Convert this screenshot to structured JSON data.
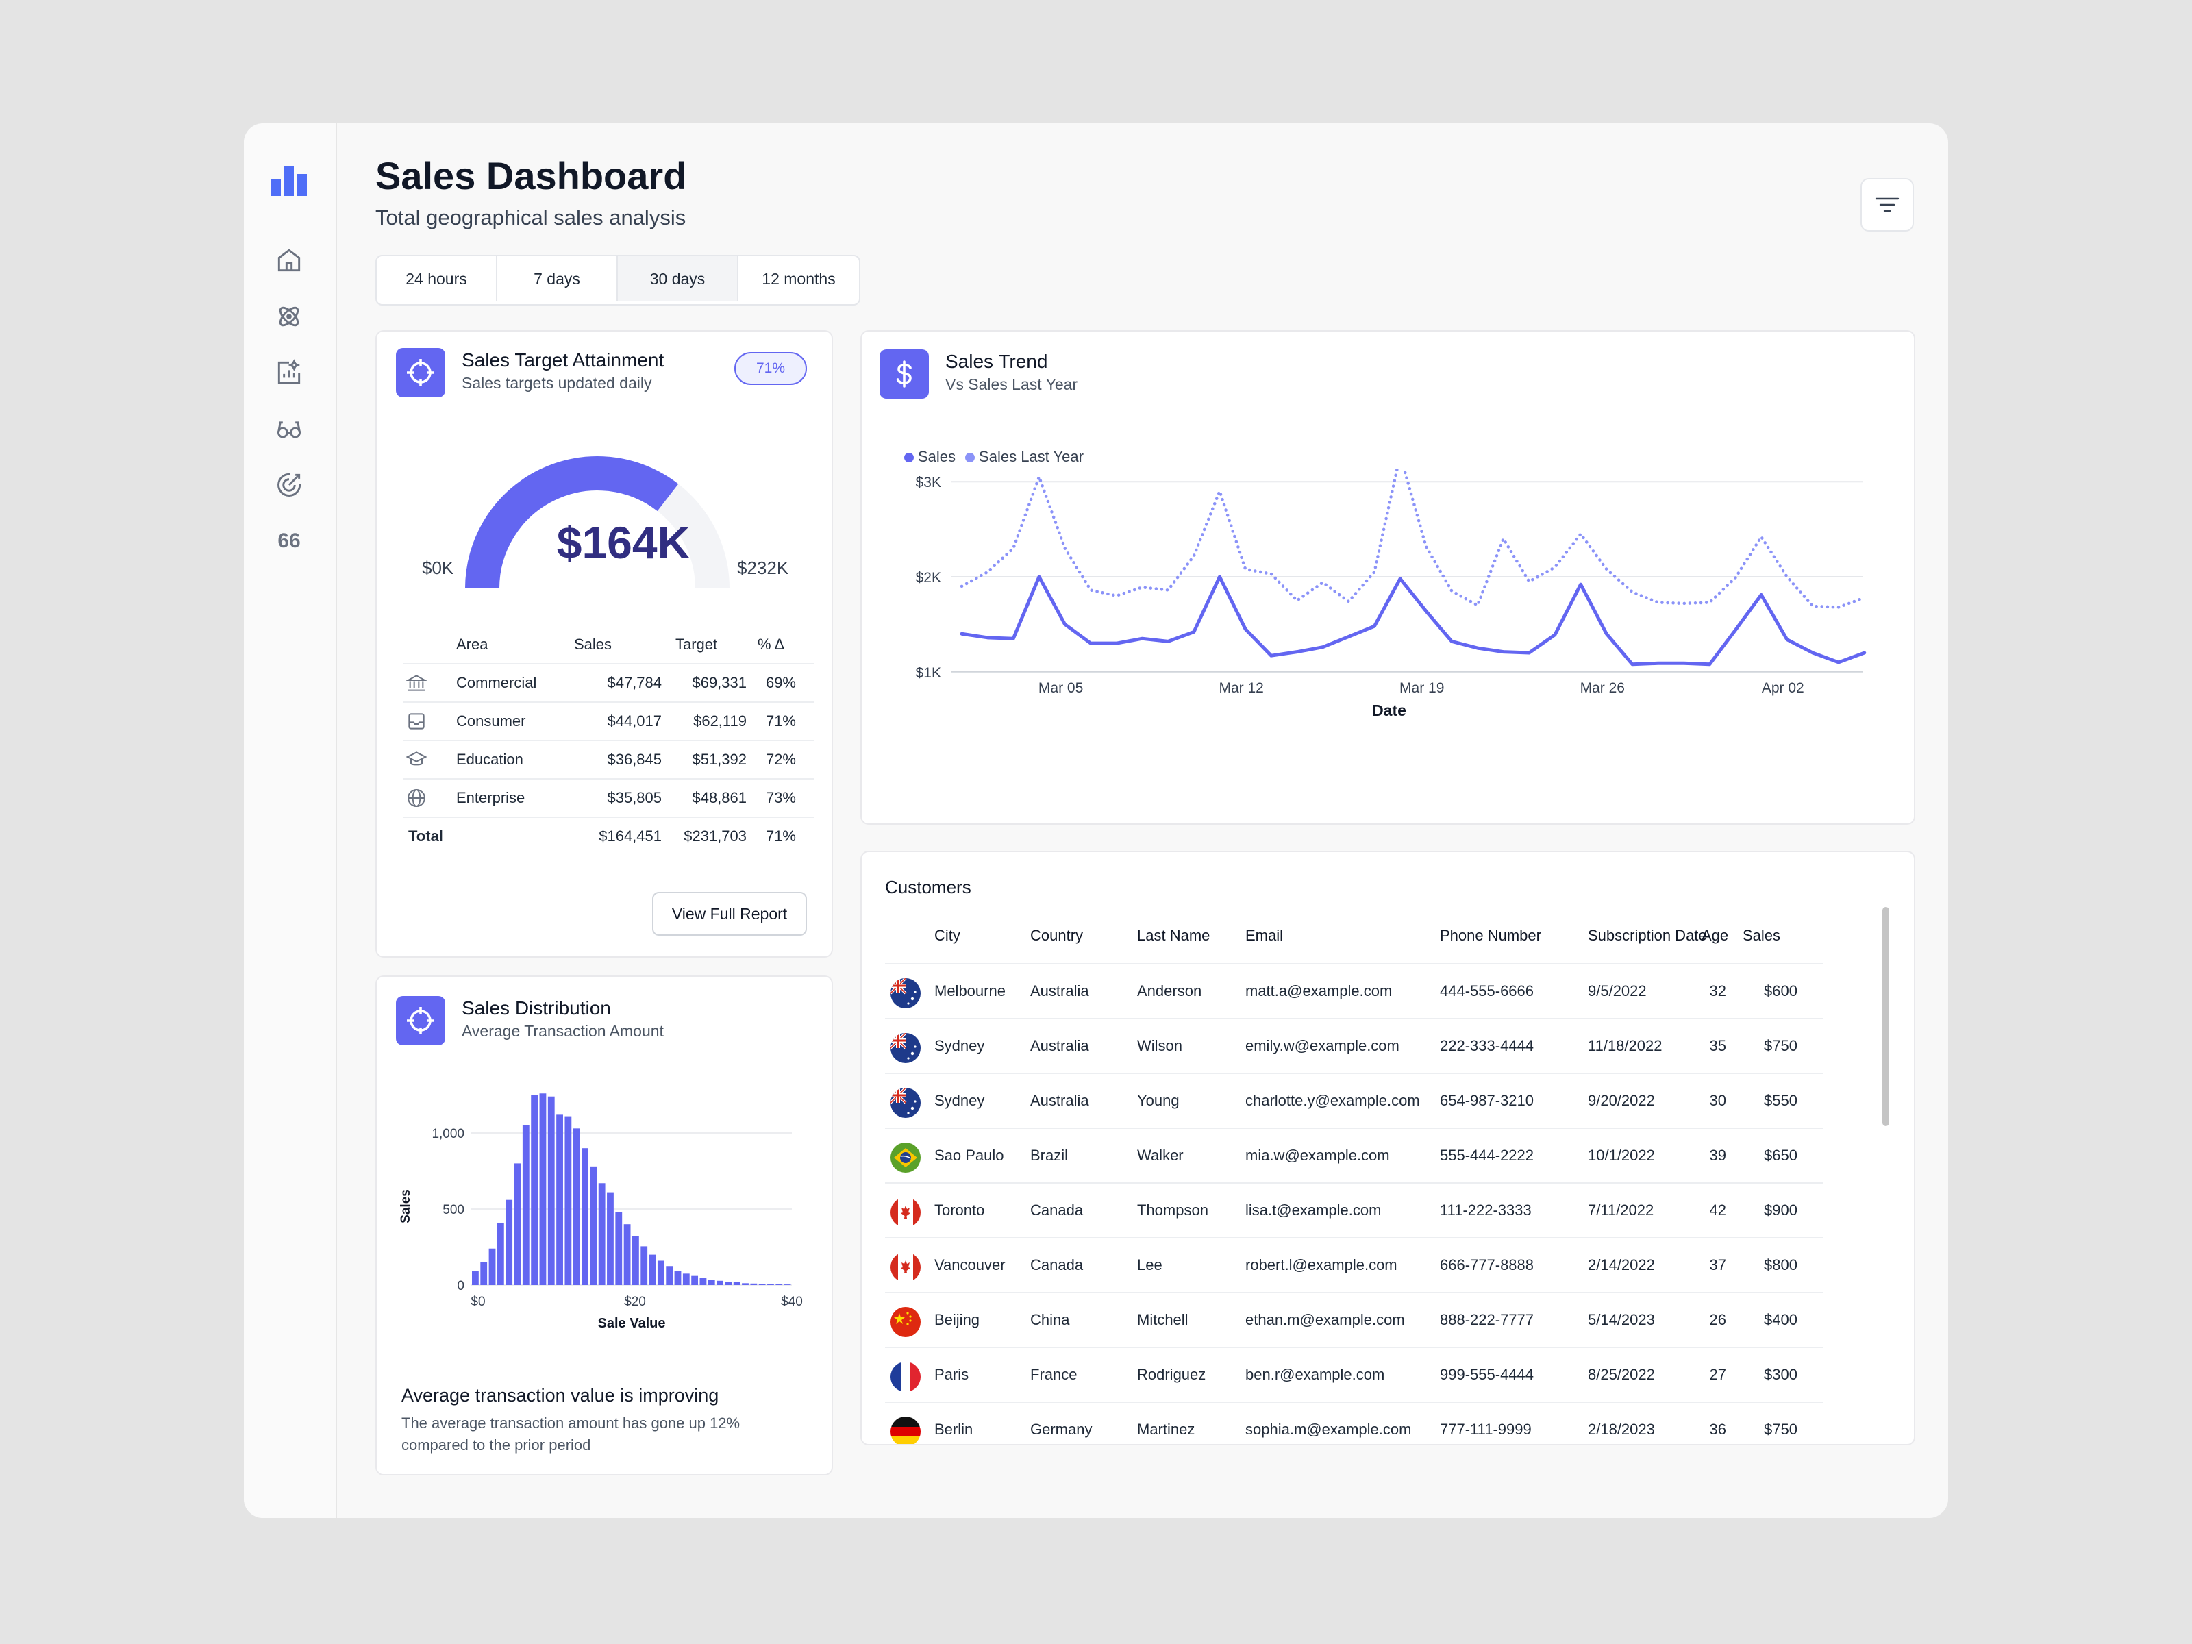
{
  "header": {
    "title": "Sales Dashboard",
    "subtitle": "Total geographical sales analysis"
  },
  "tabs": [
    {
      "label": "24 hours"
    },
    {
      "label": "7 days"
    },
    {
      "label": "30 days",
      "active": true
    },
    {
      "label": "12 months"
    }
  ],
  "colors": {
    "accent": "#6366f1",
    "accent_light": "#8b93f8",
    "gauge_track": "#f3f4f7"
  },
  "sidebar": {
    "icons": [
      "bar-chart-logo-icon",
      "home-icon",
      "atom-icon",
      "analytics-icon",
      "glasses-icon",
      "target-icon",
      "quote-icon"
    ],
    "quote_label": "66"
  },
  "target_card": {
    "title": "Sales Target Attainment",
    "subtitle": "Sales targets updated daily",
    "badge": "71%",
    "gauge": {
      "value_label": "$164K",
      "min_label": "$0K",
      "max_label": "$232K",
      "fraction": 0.71
    },
    "table": {
      "headers": [
        "Area",
        "Sales",
        "Target",
        "% Δ"
      ],
      "rows": [
        {
          "area": "Commercial",
          "sales": "$47,784",
          "target": "$69,331",
          "pct": "69%",
          "icon": "bank-icon"
        },
        {
          "area": "Consumer",
          "sales": "$44,017",
          "target": "$62,119",
          "pct": "71%",
          "icon": "inbox-icon"
        },
        {
          "area": "Education",
          "sales": "$36,845",
          "target": "$51,392",
          "pct": "72%",
          "icon": "graduation-cap-icon"
        },
        {
          "area": "Enterprise",
          "sales": "$35,805",
          "target": "$48,861",
          "pct": "73%",
          "icon": "globe-icon"
        }
      ],
      "total": {
        "label": "Total",
        "sales": "$164,451",
        "target": "$231,703",
        "pct": "71%"
      }
    },
    "button": "View Full Report"
  },
  "distribution_card": {
    "title": "Sales Distribution",
    "subtitle": "Average Transaction Amount",
    "insight_title": "Average transaction value is improving",
    "insight_body": "The average transaction amount has gone up 12% compared to the prior period",
    "chart_data": {
      "type": "bar",
      "xlabel": "Sale Value",
      "ylabel": "Sales",
      "x_ticks": [
        "$0",
        "$20",
        "$40"
      ],
      "y_ticks": [
        "0",
        "500",
        "1,000"
      ],
      "xlim": [
        0,
        40
      ],
      "ylim": [
        0,
        1250
      ],
      "values": [
        90,
        150,
        240,
        410,
        560,
        800,
        1050,
        1250,
        1260,
        1240,
        1120,
        1110,
        1030,
        900,
        780,
        670,
        610,
        480,
        400,
        320,
        255,
        200,
        160,
        125,
        90,
        75,
        60,
        45,
        35,
        28,
        22,
        18,
        12,
        10,
        8,
        6,
        5,
        4
      ],
      "grid": true
    }
  },
  "trend_card": {
    "title": "Sales Trend",
    "subtitle": "Vs Sales Last Year",
    "chart_data": {
      "type": "line",
      "xlabel": "Date",
      "ylabel": "",
      "y_ticks": [
        "$1K",
        "$2K",
        "$3K"
      ],
      "ylim": [
        1000,
        3200
      ],
      "x_ticks": [
        "Mar 05",
        "Mar 12",
        "Mar 19",
        "Mar 26",
        "Apr 02"
      ],
      "x_tick_positions": [
        4,
        11,
        18,
        25,
        32
      ],
      "legend_position": "top-left",
      "grid": true,
      "series": [
        {
          "name": "Sales",
          "style": "solid",
          "values": [
            1400,
            1360,
            1350,
            2000,
            1500,
            1300,
            1300,
            1350,
            1320,
            1420,
            2000,
            1450,
            1170,
            1210,
            1260,
            1370,
            1480,
            1980,
            1640,
            1320,
            1250,
            1210,
            1200,
            1390,
            1920,
            1400,
            1080,
            1090,
            1090,
            1080,
            1440,
            1810,
            1340,
            1200,
            1100,
            1200
          ]
        },
        {
          "name": "Sales Last Year",
          "style": "dotted",
          "values": [
            1900,
            2050,
            2300,
            3050,
            2300,
            1860,
            1800,
            1890,
            1860,
            2220,
            2900,
            2080,
            2030,
            1750,
            1940,
            1740,
            2050,
            3280,
            2320,
            1850,
            1700,
            2400,
            1950,
            2100,
            2450,
            2080,
            1840,
            1730,
            1720,
            1730,
            1990,
            2420,
            2000,
            1690,
            1680,
            1780
          ]
        }
      ]
    }
  },
  "customers_card": {
    "title": "Customers",
    "headers": [
      "City",
      "Country",
      "Last Name",
      "Email",
      "Phone Number",
      "Subscription Date",
      "Age",
      "Sales"
    ],
    "rows": [
      {
        "flag": "australia",
        "city": "Melbourne",
        "country": "Australia",
        "last": "Anderson",
        "email": "matt.a@example.com",
        "phone": "444-555-6666",
        "date": "9/5/2022",
        "age": "32",
        "sales": "$600"
      },
      {
        "flag": "australia",
        "city": "Sydney",
        "country": "Australia",
        "last": "Wilson",
        "email": "emily.w@example.com",
        "phone": "222-333-4444",
        "date": "11/18/2022",
        "age": "35",
        "sales": "$750"
      },
      {
        "flag": "australia",
        "city": "Sydney",
        "country": "Australia",
        "last": "Young",
        "email": "charlotte.y@example.com",
        "phone": "654-987-3210",
        "date": "9/20/2022",
        "age": "30",
        "sales": "$550"
      },
      {
        "flag": "brazil",
        "city": "Sao Paulo",
        "country": "Brazil",
        "last": "Walker",
        "email": "mia.w@example.com",
        "phone": "555-444-2222",
        "date": "10/1/2022",
        "age": "39",
        "sales": "$650"
      },
      {
        "flag": "canada",
        "city": "Toronto",
        "country": "Canada",
        "last": "Thompson",
        "email": "lisa.t@example.com",
        "phone": "111-222-3333",
        "date": "7/11/2022",
        "age": "42",
        "sales": "$900"
      },
      {
        "flag": "canada",
        "city": "Vancouver",
        "country": "Canada",
        "last": "Lee",
        "email": "robert.l@example.com",
        "phone": "666-777-8888",
        "date": "2/14/2022",
        "age": "37",
        "sales": "$800"
      },
      {
        "flag": "china",
        "city": "Beijing",
        "country": "China",
        "last": "Mitchell",
        "email": "ethan.m@example.com",
        "phone": "888-222-7777",
        "date": "5/14/2023",
        "age": "26",
        "sales": "$400"
      },
      {
        "flag": "france",
        "city": "Paris",
        "country": "France",
        "last": "Rodriguez",
        "email": "ben.r@example.com",
        "phone": "999-555-4444",
        "date": "8/25/2022",
        "age": "27",
        "sales": "$300"
      },
      {
        "flag": "germany",
        "city": "Berlin",
        "country": "Germany",
        "last": "Martinez",
        "email": "sophia.m@example.com",
        "phone": "777-111-9999",
        "date": "2/18/2023",
        "age": "36",
        "sales": "$750"
      }
    ]
  }
}
